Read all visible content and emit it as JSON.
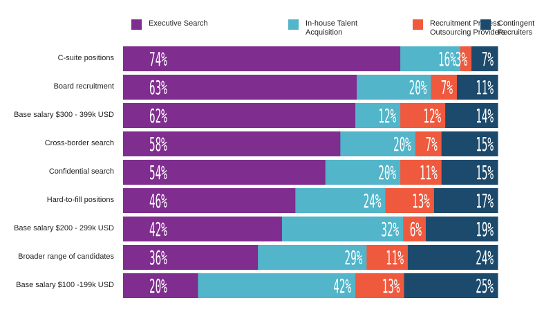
{
  "chart_data": {
    "type": "bar",
    "orientation": "horizontal",
    "stacked": true,
    "legend_position": "top",
    "grid": false,
    "categories": [
      "C-suite positions",
      "Board recruitment",
      "Base salary $300 - 399k USD",
      "Cross-border search",
      "Confidential search",
      "Hard-to-fill positions",
      "Base salary $200 - 299k USD",
      "Broader range of candidates",
      "Base salary $100 -199k USD"
    ],
    "series": [
      {
        "name": "Executive Search",
        "color": "#7f2d8e",
        "values": [
          74,
          63,
          62,
          58,
          54,
          46,
          42,
          36,
          20
        ]
      },
      {
        "name": "In-house Talent Acquisition",
        "color": "#52b5c9",
        "values": [
          16,
          20,
          12,
          20,
          20,
          24,
          32,
          29,
          42
        ]
      },
      {
        "name": "Recruitment Process Outsourcing Providers",
        "color": "#ef5a3e",
        "values": [
          3,
          7,
          12,
          7,
          11,
          13,
          6,
          11,
          13
        ]
      },
      {
        "name": "Contingent Recruiters",
        "color": "#1c4a6c",
        "values": [
          7,
          11,
          14,
          15,
          15,
          17,
          19,
          24,
          25
        ]
      }
    ],
    "value_suffix": "%"
  }
}
